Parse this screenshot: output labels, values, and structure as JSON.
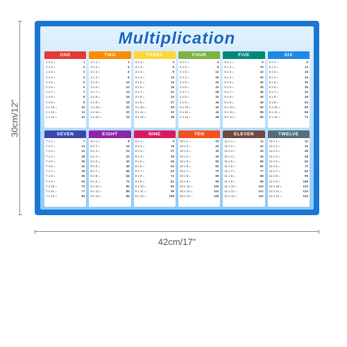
{
  "title": "Multiplication",
  "dimensions": {
    "height": "30cm/12\"",
    "width": "42cm/17\""
  },
  "poster": {
    "border_color": "#1976d2",
    "bg_gradient": [
      "#e3f2fd",
      "#bbdefb",
      "#90caf9"
    ],
    "title_color": "#1565c0"
  },
  "tables": [
    {
      "label": "ONE",
      "color": "#e53935",
      "n": 1
    },
    {
      "label": "TWO",
      "color": "#fb8c00",
      "n": 2
    },
    {
      "label": "THREE",
      "color": "#fdd835",
      "n": 3
    },
    {
      "label": "FOUR",
      "color": "#7cb342",
      "n": 4
    },
    {
      "label": "FIVE",
      "color": "#00897b",
      "n": 5
    },
    {
      "label": "SIX",
      "color": "#1e88e5",
      "n": 6
    },
    {
      "label": "SEVEN",
      "color": "#3949ab",
      "n": 7
    },
    {
      "label": "EIGHT",
      "color": "#8e24aa",
      "n": 8
    },
    {
      "label": "NINE",
      "color": "#d81b60",
      "n": 9
    },
    {
      "label": "TEN",
      "color": "#f4511e",
      "n": 10
    },
    {
      "label": "ELEVEN",
      "color": "#6d4c41",
      "n": 11
    },
    {
      "label": "TWELVE",
      "color": "#546e7a",
      "n": 12
    }
  ],
  "multipliers": [
    1,
    2,
    3,
    4,
    5,
    6,
    7,
    8,
    9,
    10,
    11,
    12
  ]
}
